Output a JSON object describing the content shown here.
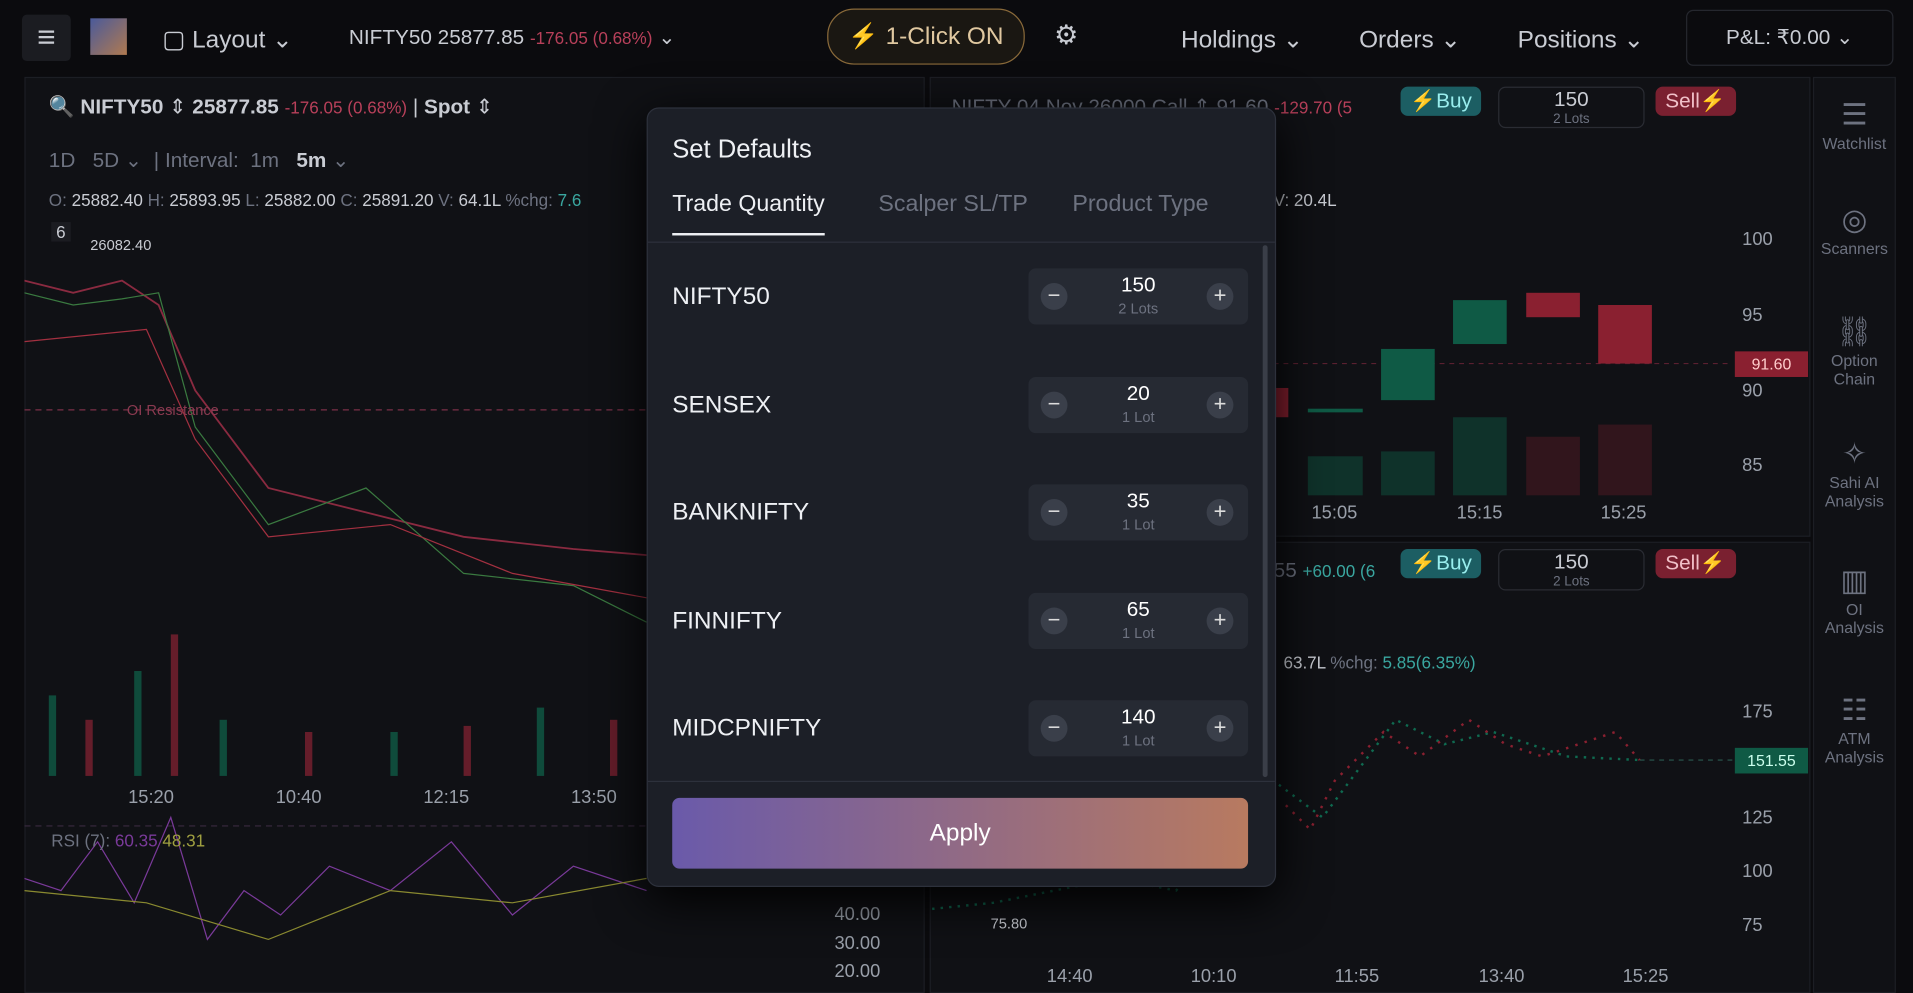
{
  "header": {
    "layout": "Layout",
    "symbol": "NIFTY50 25877.85",
    "change": "-176.05 (0.68%)",
    "one_click": "1-Click ON",
    "menu": [
      "Holdings",
      "Orders",
      "Positions"
    ],
    "pnl": "P&L: ₹0.00"
  },
  "left_chart": {
    "symbol": "NIFTY50",
    "price": "25877.85",
    "change": "-176.05 (0.68%)",
    "mode": "Spot",
    "ranges": [
      "1D",
      "5D"
    ],
    "interval_label": "Interval:",
    "intervals": [
      "1m",
      "5m"
    ],
    "ohlc": [
      [
        "O:",
        "25882.40"
      ],
      [
        "H:",
        "25893.95"
      ],
      [
        "L:",
        "25882.00"
      ],
      [
        "C:",
        "25891.20"
      ],
      [
        "V:",
        "64.1L"
      ],
      [
        "%chg:",
        "7.6"
      ]
    ],
    "count": "6",
    "high_label": "26082.40",
    "annotation": "OI Resistance",
    "xticks": [
      "15:20",
      "10:40",
      "12:15",
      "13:50"
    ],
    "rsi": {
      "label": "RSI (7):",
      "v1": "60.35",
      "v2": "48.31"
    },
    "rsi_ticks": [
      "40.00",
      "30.00",
      "20.00"
    ]
  },
  "right_top": {
    "title": "NIFTY 04 Nov 26000 Call",
    "price": "91.60",
    "change": "-129.70 (5",
    "buy": "Buy",
    "qty": "150",
    "lots": "2 Lots",
    "sell": "Sell",
    "volume": "V: 20.4L",
    "yticks": [
      "100",
      "95",
      "90",
      "85"
    ],
    "last": "91.60",
    "xticks": [
      "15:05",
      "15:15",
      "15:25"
    ]
  },
  "right_bottom": {
    "price": "55",
    "change": "+60.00 (6",
    "buy": "Buy",
    "qty": "150",
    "lots": "2 Lots",
    "sell": "Sell",
    "volume": "63.7L",
    "chg_label": "%chg:",
    "chg": "5.85(6.35%)",
    "yticks": [
      "175",
      "125",
      "100",
      "75"
    ],
    "last": "151.55",
    "low_label": "75.80",
    "xticks": [
      "14:40",
      "10:10",
      "11:55",
      "13:40",
      "15:25"
    ]
  },
  "sidebar": [
    "Watchlist",
    "Scanners",
    "Option Chain",
    "Sahi AI Analysis",
    "OI Analysis",
    "ATM Analysis"
  ],
  "modal": {
    "title": "Set Defaults",
    "tabs": [
      "Trade Quantity",
      "Scalper SL/TP",
      "Product Type"
    ],
    "rows": [
      {
        "name": "NIFTY50",
        "qty": "150",
        "lots": "2 Lots"
      },
      {
        "name": "SENSEX",
        "qty": "20",
        "lots": "1 Lot"
      },
      {
        "name": "BANKNIFTY",
        "qty": "35",
        "lots": "1 Lot"
      },
      {
        "name": "FINNIFTY",
        "qty": "65",
        "lots": "1 Lot"
      },
      {
        "name": "MIDCPNIFTY",
        "qty": "140",
        "lots": "1 Lot"
      }
    ],
    "apply": "Apply"
  }
}
